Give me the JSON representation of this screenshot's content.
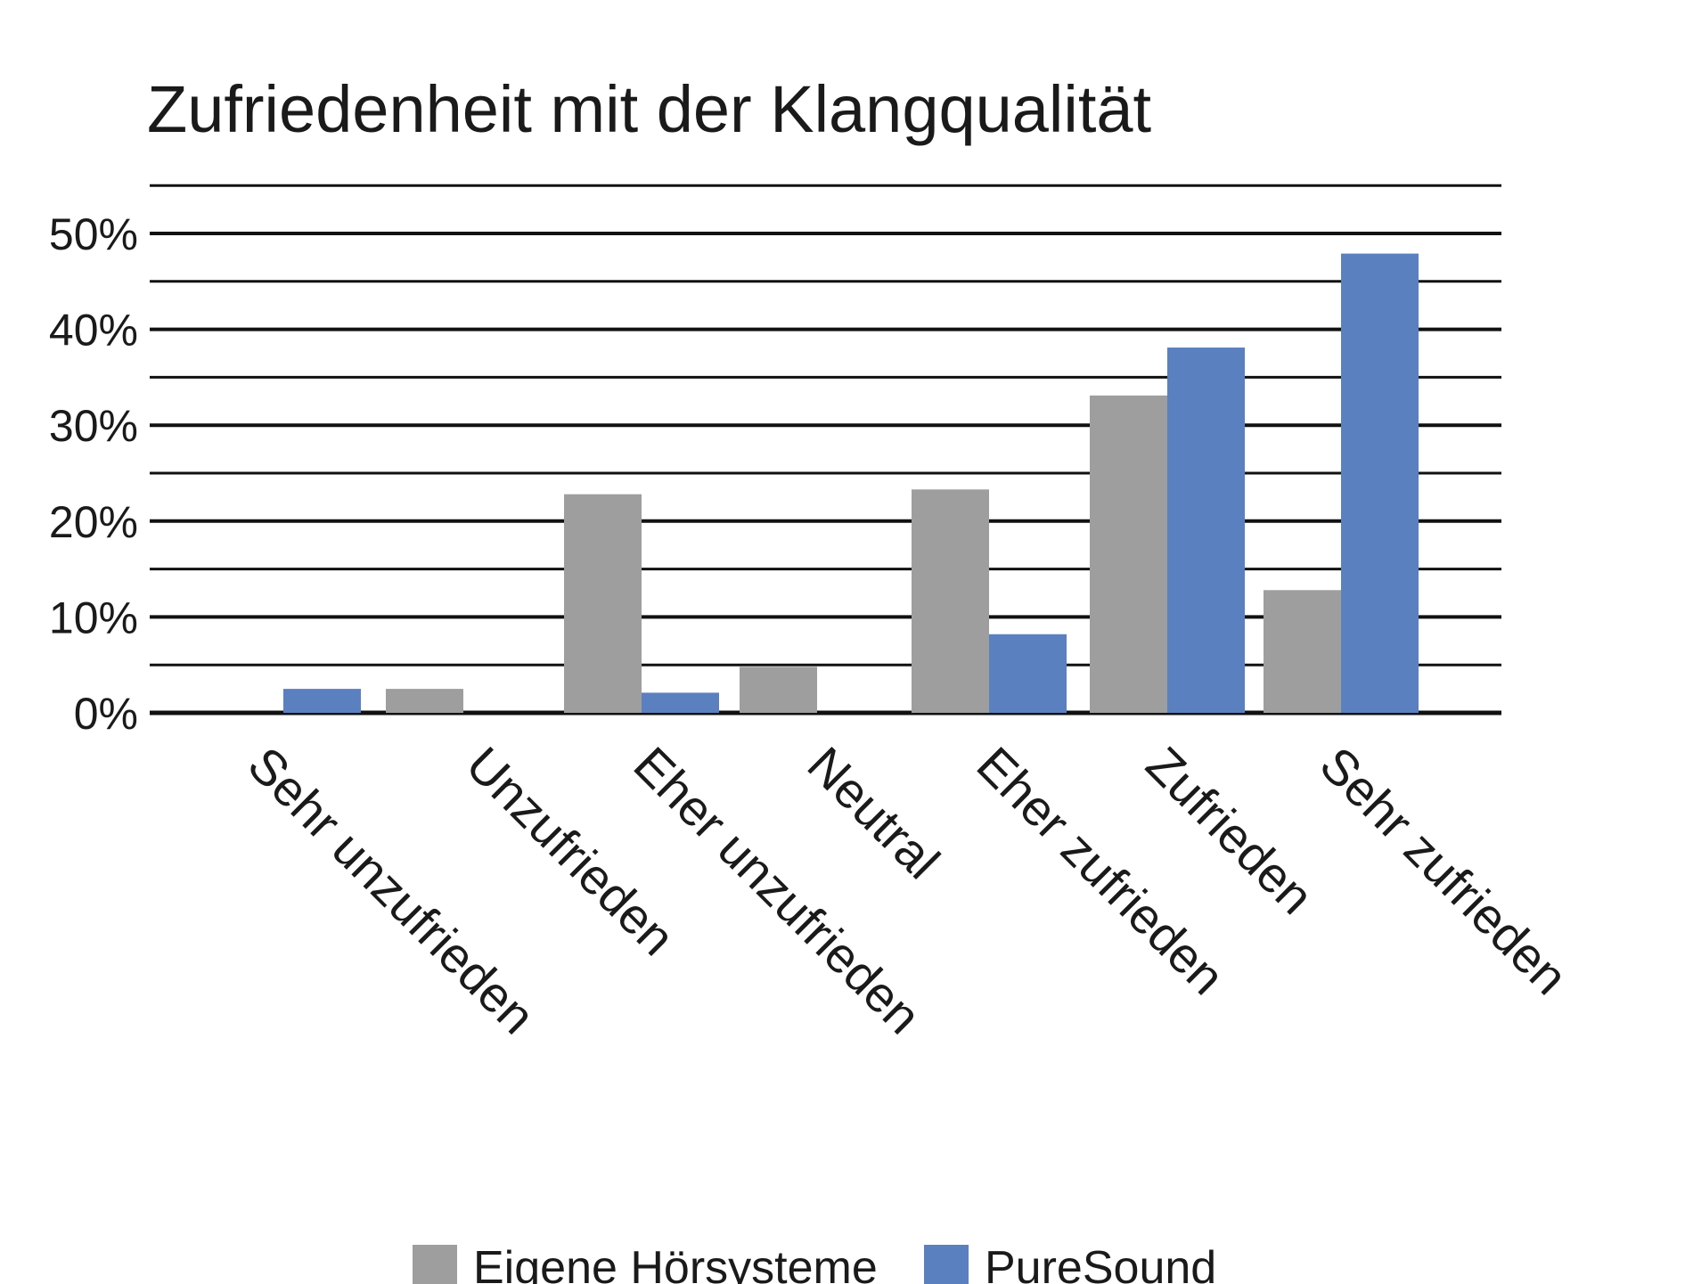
{
  "chart_data": {
    "type": "bar",
    "title": "Zufriedenheit mit der Klangqualität",
    "xlabel": "",
    "ylabel": "",
    "ylim": [
      0,
      50
    ],
    "yticks": [
      "0%",
      "10%",
      "20%",
      "30%",
      "40%",
      "50%"
    ],
    "grid": true,
    "legend_position": "bottom",
    "categories": [
      "Sehr unzufrieden",
      "Unzufrieden",
      "Eher unzufrieden",
      "Neutral",
      "Eher zufrieden",
      "Zufrieden",
      "Sehr zufrieden"
    ],
    "series": [
      {
        "name": "Eigene Hörsysteme",
        "color": "#9e9e9e",
        "values": [
          0,
          2.5,
          22.8,
          4.8,
          23.3,
          33.1,
          12.8
        ]
      },
      {
        "name": "PureSound",
        "color": "#5b80c0",
        "values": [
          2.5,
          0,
          2.1,
          0,
          8.2,
          38.1,
          47.9
        ]
      }
    ]
  }
}
